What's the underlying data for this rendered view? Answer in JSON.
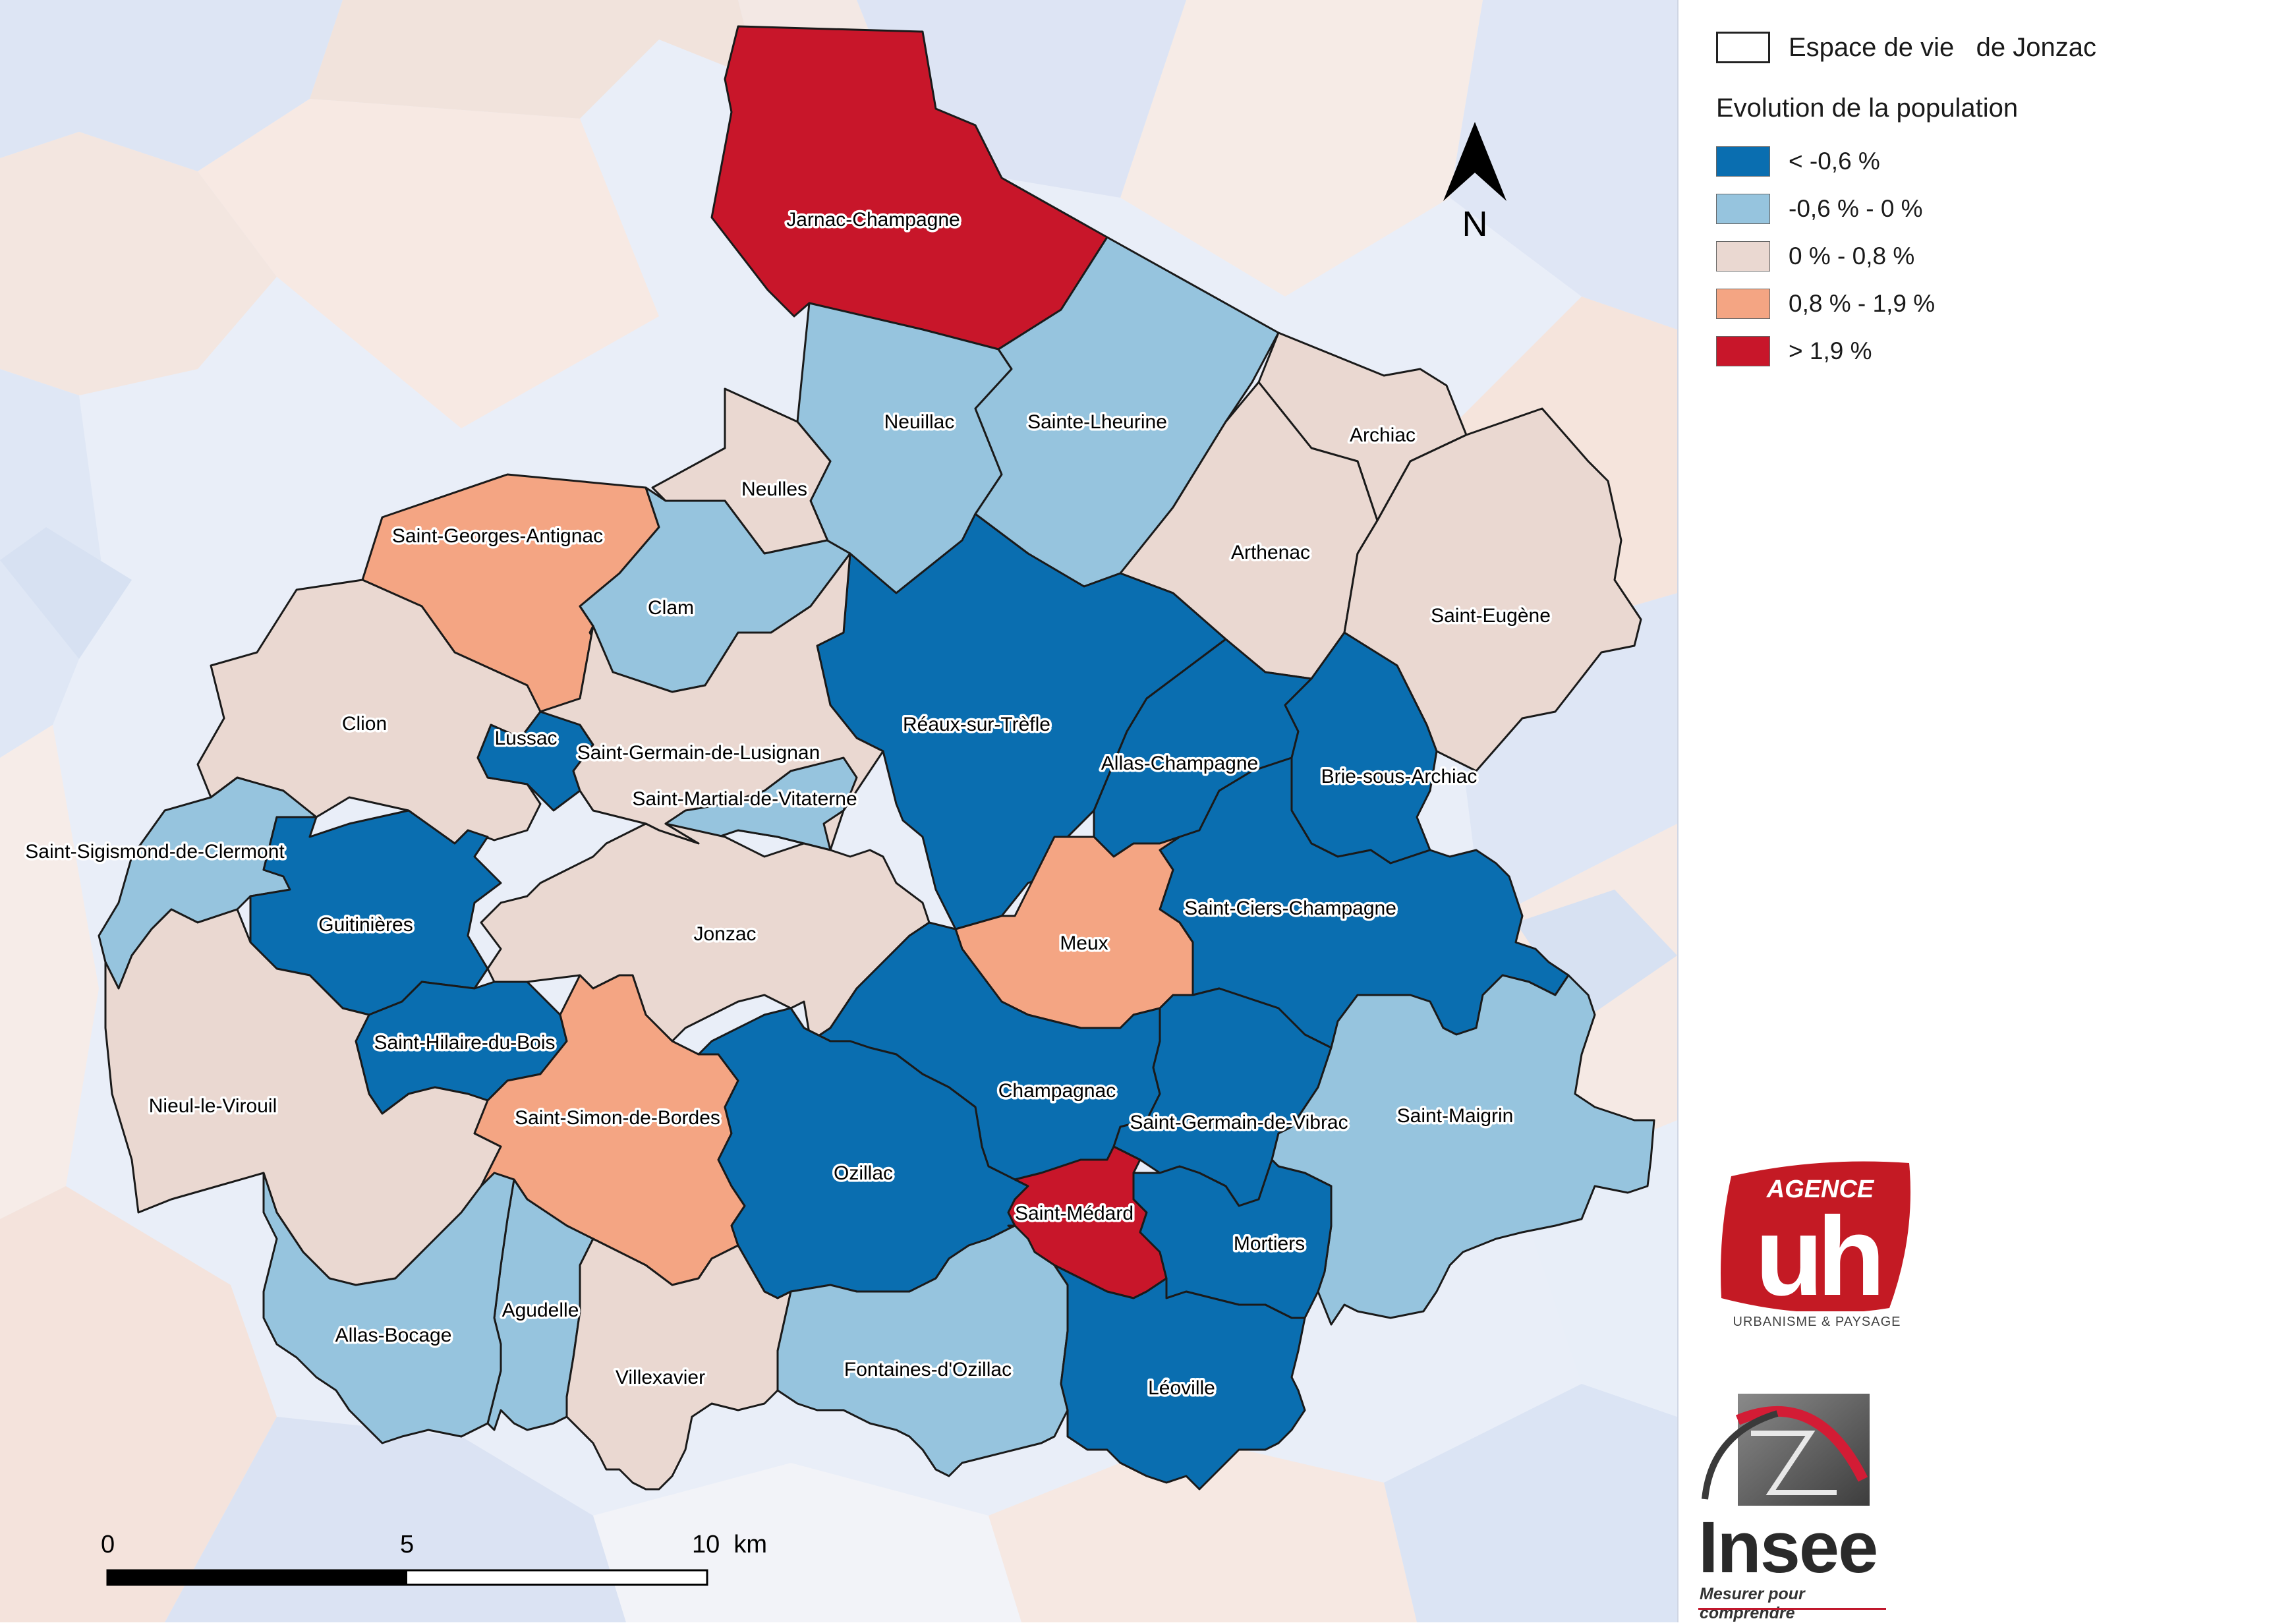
{
  "legend": {
    "espace_label": "Espace de vie   de Jonzac",
    "evolution_title": "Evolution de la population",
    "classes": [
      {
        "label": "< -0,6 %",
        "color": "#0a6eb0"
      },
      {
        "label": "-0,6 % - 0 %",
        "color": "#96c4de"
      },
      {
        "label": "0 % - 0,8 %",
        "color": "#ead8d1"
      },
      {
        "label": "0,8 % - 1,9 %",
        "color": "#f4a583"
      },
      {
        "label": "> 1,9 %",
        "color": "#c8162a"
      }
    ]
  },
  "north_label": "N",
  "scale": {
    "labels": [
      "0",
      "5",
      "10  km"
    ]
  },
  "communes": [
    {
      "name": "Jarnac-Champagne",
      "class": 4
    },
    {
      "name": "Neuillac",
      "class": 1
    },
    {
      "name": "Sainte-Lheurine",
      "class": 1
    },
    {
      "name": "Archiac",
      "class": 2
    },
    {
      "name": "Neulles",
      "class": 2
    },
    {
      "name": "Arthenac",
      "class": 2
    },
    {
      "name": "Saint-Georges-Antignac",
      "class": 3
    },
    {
      "name": "Clam",
      "class": 1
    },
    {
      "name": "Saint-Eugène",
      "class": 2
    },
    {
      "name": "Clion",
      "class": 2
    },
    {
      "name": "Réaux-sur-Trèfle",
      "class": 0
    },
    {
      "name": "Lussac",
      "class": 0
    },
    {
      "name": "Saint-Germain-de-Lusignan",
      "class": 2
    },
    {
      "name": "Allas-Champagne",
      "class": 0
    },
    {
      "name": "Brie-sous-Archiac",
      "class": 0
    },
    {
      "name": "Saint-Martial-de-Vitaterne",
      "class": 1
    },
    {
      "name": "Saint-Sigismond-de-Clermont",
      "class": 1
    },
    {
      "name": "Guitinières",
      "class": 0
    },
    {
      "name": "Saint-Ciers-Champagne",
      "class": 0
    },
    {
      "name": "Jonzac",
      "class": 2
    },
    {
      "name": "Meux",
      "class": 3
    },
    {
      "name": "Saint-Hilaire-du-Bois",
      "class": 0
    },
    {
      "name": "Champagnac",
      "class": 0
    },
    {
      "name": "Nieul-le-Virouil",
      "class": 2
    },
    {
      "name": "Saint-Simon-de-Bordes",
      "class": 3
    },
    {
      "name": "Saint-Germain-de-Vibrac",
      "class": 0
    },
    {
      "name": "Saint-Maigrin",
      "class": 1
    },
    {
      "name": "Ozillac",
      "class": 0
    },
    {
      "name": "Saint-Médard",
      "class": 4
    },
    {
      "name": "Mortiers",
      "class": 0
    },
    {
      "name": "Agudelle",
      "class": 1
    },
    {
      "name": "Allas-Bocage",
      "class": 1
    },
    {
      "name": "Villexavier",
      "class": 2
    },
    {
      "name": "Fontaines-d'Ozillac",
      "class": 1
    },
    {
      "name": "Léoville",
      "class": 0
    }
  ],
  "logos": {
    "uh_agence": "AGENCE",
    "uh_mark": "uh",
    "uh_caption": "URBANISME & PAYSAGE",
    "insee_word": "Insee",
    "insee_tagline": "Mesurer pour comprendre"
  }
}
